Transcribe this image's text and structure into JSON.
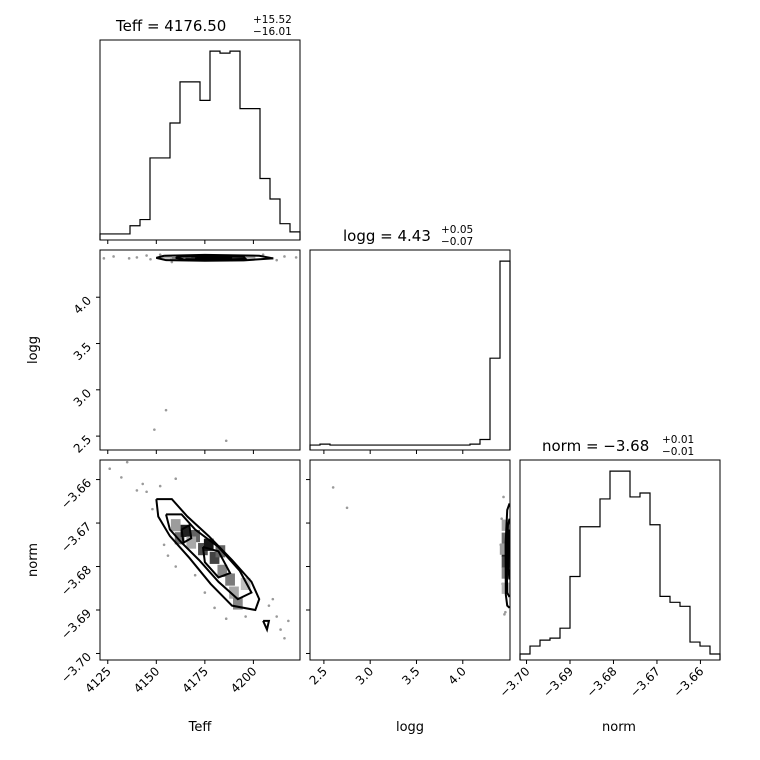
{
  "chart_data": {
    "type": "corner",
    "parameters": [
      {
        "name": "Teff",
        "axis_label": "Teff",
        "median": "4176.50",
        "err_plus": "+15.52",
        "err_minus": "−16.01",
        "title_prefix": "Teff = 4176.50"
      },
      {
        "name": "logg",
        "axis_label": "logg",
        "median": "4.43",
        "err_plus": "+0.05",
        "err_minus": "−0.07",
        "title_prefix": "logg = 4.43"
      },
      {
        "name": "norm",
        "axis_label": "norm",
        "median": "−3.68",
        "err_plus": "+0.01",
        "err_minus": "−0.01",
        "title_prefix": "norm = −3.68"
      }
    ],
    "ticks": {
      "teff": [
        "4125",
        "4150",
        "4175",
        "4200"
      ],
      "logg": [
        "2.5",
        "3.0",
        "3.5",
        "4.0"
      ],
      "logg_y": [
        "2.5",
        "3.0",
        "3.5",
        "4.0"
      ],
      "norm_x": [
        "−3.70",
        "−3.69",
        "−3.68",
        "−3.67",
        "−3.66"
      ],
      "norm_y": [
        "−3.66",
        "−3.67",
        "−3.68",
        "−3.69",
        "−3.70"
      ]
    },
    "ranges": {
      "teff": [
        4121,
        4224
      ],
      "logg": [
        2.35,
        4.51
      ],
      "norm": [
        -3.7015,
        -3.6555
      ]
    },
    "histograms": {
      "teff": {
        "edges": [
          4121,
          4126.15,
          4131.3,
          4136.45,
          4141.6,
          4146.75,
          4151.9,
          4157.05,
          4162.2,
          4167.35,
          4172.5,
          4177.65,
          4182.8,
          4187.95,
          4193.1,
          4198.25,
          4203.4,
          4208.55,
          4213.7,
          4218.85,
          4224
        ],
        "counts": [
          1,
          1,
          1,
          5,
          8,
          38,
          38,
          55,
          75,
          75,
          66,
          90,
          89,
          90,
          62,
          62,
          28,
          18,
          6,
          2
        ]
      },
      "logg": {
        "edges": [
          2.35,
          2.458,
          2.566,
          2.674,
          2.782,
          2.89,
          2.998,
          3.106,
          3.214,
          3.322,
          3.43,
          3.538,
          3.646,
          3.754,
          3.862,
          3.97,
          4.078,
          4.186,
          4.294,
          4.402,
          4.51
        ],
        "counts": [
          1,
          2,
          1,
          1,
          1,
          1,
          1,
          1,
          1,
          1,
          1,
          1,
          1,
          1,
          1,
          1,
          2,
          7,
          95,
          200
        ]
      },
      "norm": {
        "edges": [
          -3.7015,
          -3.6992,
          -3.6969,
          -3.6946,
          -3.6923,
          -3.69,
          -3.6877,
          -3.6854,
          -3.6831,
          -3.6808,
          -3.6785,
          -3.6762,
          -3.6739,
          -3.6716,
          -3.6693,
          -3.667,
          -3.6647,
          -3.6624,
          -3.6601,
          -3.6578,
          -3.6555
        ],
        "counts": [
          1,
          5,
          8,
          9,
          14,
          40,
          65,
          65,
          79,
          93,
          93,
          80,
          82,
          66,
          30,
          27,
          25,
          7,
          5,
          1
        ]
      }
    },
    "density_cells": {
      "teff_logg": [
        [
          4160,
          4.42,
          0.5
        ],
        [
          4168,
          4.42,
          0.75
        ],
        [
          4174,
          4.42,
          0.9
        ],
        [
          4180,
          4.42,
          1.0
        ],
        [
          4186,
          4.42,
          0.95
        ],
        [
          4192,
          4.42,
          0.6
        ],
        [
          4165,
          4.44,
          0.4
        ],
        [
          4183,
          4.44,
          0.55
        ],
        [
          4155,
          4.43,
          0.25
        ],
        [
          4198,
          4.43,
          0.3
        ]
      ],
      "teff_norm": [
        [
          4160,
          -3.6705,
          0.35
        ],
        [
          4162,
          -3.6735,
          0.55
        ],
        [
          4165,
          -3.6718,
          0.9
        ],
        [
          4170,
          -3.673,
          0.6
        ],
        [
          4174,
          -3.676,
          0.7
        ],
        [
          4177,
          -3.675,
          0.95
        ],
        [
          4180,
          -3.678,
          0.75
        ],
        [
          4183,
          -3.6765,
          0.6
        ],
        [
          4184,
          -3.681,
          0.45
        ],
        [
          4188,
          -3.683,
          0.5
        ],
        [
          4190,
          -3.686,
          0.3
        ],
        [
          4192,
          -3.6885,
          0.45
        ],
        [
          4168,
          -3.6745,
          0.3
        ],
        [
          4196,
          -3.684,
          0.2
        ]
      ],
      "logg_norm": [
        [
          4.47,
          -3.6705,
          0.3
        ],
        [
          4.47,
          -3.6735,
          0.55
        ],
        [
          4.47,
          -3.6765,
          0.9
        ],
        [
          4.47,
          -3.679,
          0.7
        ],
        [
          4.47,
          -3.6815,
          0.45
        ],
        [
          4.47,
          -3.685,
          0.25
        ],
        [
          4.45,
          -3.676,
          0.35
        ]
      ]
    },
    "contours": {
      "teff_logg": [
        [
          [
            4154,
            4.448
          ],
          [
            4175,
            4.458
          ],
          [
            4203,
            4.448
          ],
          [
            4210,
            4.42
          ],
          [
            4195,
            4.398
          ],
          [
            4175,
            4.394
          ],
          [
            4155,
            4.4
          ],
          [
            4150,
            4.425
          ],
          [
            4154,
            4.448
          ]
        ],
        [
          [
            4162,
            4.438
          ],
          [
            4178,
            4.446
          ],
          [
            4195,
            4.436
          ],
          [
            4196,
            4.414
          ],
          [
            4178,
            4.404
          ],
          [
            4164,
            4.41
          ],
          [
            4160,
            4.425
          ],
          [
            4162,
            4.438
          ]
        ],
        [
          [
            4172,
            4.428
          ],
          [
            4186,
            4.432
          ],
          [
            4189,
            4.418
          ],
          [
            4176,
            4.412
          ],
          [
            4170,
            4.418
          ],
          [
            4172,
            4.428
          ]
        ]
      ],
      "teff_norm": [
        [
          [
            4150,
            -3.6645
          ],
          [
            4158,
            -3.6645
          ],
          [
            4166,
            -3.6685
          ],
          [
            4177,
            -3.673
          ],
          [
            4189,
            -3.6785
          ],
          [
            4199,
            -3.6835
          ],
          [
            4203,
            -3.6875
          ],
          [
            4201,
            -3.69
          ],
          [
            4189,
            -3.689
          ],
          [
            4178,
            -3.684
          ],
          [
            4167,
            -3.678
          ],
          [
            4157,
            -3.673
          ],
          [
            4151,
            -3.6685
          ],
          [
            4150,
            -3.6645
          ]
        ],
        [
          [
            4155,
            -3.668
          ],
          [
            4163,
            -3.668
          ],
          [
            4170,
            -3.6715
          ],
          [
            4182,
            -3.6755
          ],
          [
            4193,
            -3.681
          ],
          [
            4199,
            -3.686
          ],
          [
            4192,
            -3.6875
          ],
          [
            4182,
            -3.6835
          ],
          [
            4172,
            -3.6785
          ],
          [
            4163,
            -3.6745
          ],
          [
            4157,
            -3.6715
          ],
          [
            4155,
            -3.668
          ]
        ],
        [
          [
            4163,
            -3.6715
          ],
          [
            4167,
            -3.6705
          ],
          [
            4168,
            -3.6735
          ],
          [
            4164,
            -3.6745
          ],
          [
            4163,
            -3.6715
          ]
        ],
        [
          [
            4174,
            -3.6755
          ],
          [
            4182,
            -3.6765
          ],
          [
            4188,
            -3.6815
          ],
          [
            4182,
            -3.6825
          ],
          [
            4175,
            -3.679
          ],
          [
            4174,
            -3.6755
          ]
        ],
        [
          [
            4205,
            -3.6925
          ],
          [
            4208,
            -3.6925
          ],
          [
            4207,
            -3.6945
          ],
          [
            4205,
            -3.6925
          ]
        ]
      ],
      "logg_norm": [
        [
          [
            4.505,
            -3.6655
          ],
          [
            4.48,
            -3.667
          ],
          [
            4.462,
            -3.675
          ],
          [
            4.465,
            -3.6865
          ],
          [
            4.48,
            -3.689
          ],
          [
            4.505,
            -3.6895
          ]
        ],
        [
          [
            4.505,
            -3.669
          ],
          [
            4.488,
            -3.6705
          ],
          [
            4.476,
            -3.677
          ],
          [
            4.478,
            -3.686
          ],
          [
            4.505,
            -3.687
          ]
        ],
        [
          [
            4.505,
            -3.6715
          ],
          [
            4.495,
            -3.674
          ],
          [
            4.492,
            -3.6805
          ],
          [
            4.505,
            -3.683
          ]
        ]
      ]
    },
    "scatter": {
      "teff_logg": [
        [
          4123,
          4.42
        ],
        [
          4128,
          4.44
        ],
        [
          4140,
          4.43
        ],
        [
          4147,
          4.41
        ],
        [
          4152,
          4.46
        ],
        [
          4210,
          4.42
        ],
        [
          4216,
          4.44
        ],
        [
          4145,
          4.45
        ],
        [
          4212,
          4.4
        ],
        [
          4136,
          4.42
        ],
        [
          4158,
          4.38
        ],
        [
          4205,
          4.46
        ],
        [
          4222,
          4.43
        ]
      ],
      "teff_logg_outliers": [
        [
          4155,
          2.78
        ],
        [
          4149,
          2.57
        ],
        [
          4186,
          2.45
        ]
      ],
      "teff_norm": [
        [
          4126,
          -3.6575
        ],
        [
          4132,
          -3.6595
        ],
        [
          4135,
          -3.656
        ],
        [
          4140,
          -3.6625
        ],
        [
          4143,
          -3.661
        ],
        [
          4148,
          -3.6668
        ],
        [
          4152,
          -3.6615
        ],
        [
          4154,
          -3.675
        ],
        [
          4156,
          -3.6775
        ],
        [
          4160,
          -3.68
        ],
        [
          4170,
          -3.682
        ],
        [
          4175,
          -3.686
        ],
        [
          4180,
          -3.6895
        ],
        [
          4186,
          -3.692
        ],
        [
          4196,
          -3.6915
        ],
        [
          4208,
          -3.689
        ],
        [
          4212,
          -3.6915
        ],
        [
          4214,
          -3.6945
        ],
        [
          4216,
          -3.6965
        ],
        [
          4210,
          -3.6875
        ],
        [
          4145,
          -3.6628
        ],
        [
          4160,
          -3.6598
        ],
        [
          4218,
          -3.6925
        ]
      ],
      "logg_norm": [
        [
          2.6,
          -3.6618
        ],
        [
          2.75,
          -3.6665
        ],
        [
          4.42,
          -3.669
        ],
        [
          4.43,
          -3.684
        ],
        [
          4.44,
          -3.678
        ],
        [
          4.41,
          -3.675
        ],
        [
          4.44,
          -3.664
        ],
        [
          4.45,
          -3.691
        ],
        [
          4.46,
          -3.6905
        ]
      ]
    }
  }
}
